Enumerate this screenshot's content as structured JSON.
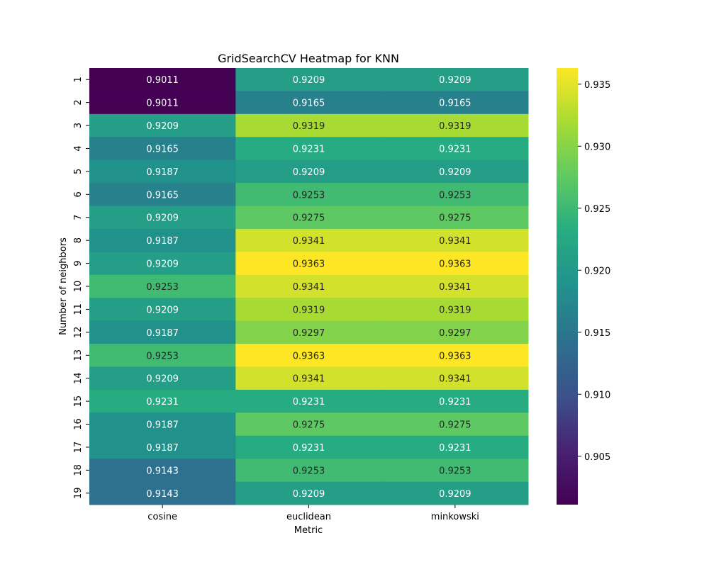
{
  "chart_data": {
    "type": "heatmap",
    "title": "GridSearchCV Heatmap for KNN",
    "xlabel": "Metric",
    "ylabel": "Number of neighbors",
    "x_categories": [
      "cosine",
      "euclidean",
      "minkowski"
    ],
    "y_categories": [
      "1",
      "2",
      "3",
      "4",
      "5",
      "6",
      "7",
      "8",
      "9",
      "10",
      "11",
      "12",
      "13",
      "14",
      "15",
      "16",
      "17",
      "18",
      "19"
    ],
    "values": [
      [
        0.9011,
        0.9209,
        0.9209
      ],
      [
        0.9011,
        0.9165,
        0.9165
      ],
      [
        0.9209,
        0.9319,
        0.9319
      ],
      [
        0.9165,
        0.9231,
        0.9231
      ],
      [
        0.9187,
        0.9209,
        0.9209
      ],
      [
        0.9165,
        0.9253,
        0.9253
      ],
      [
        0.9209,
        0.9275,
        0.9275
      ],
      [
        0.9187,
        0.9341,
        0.9341
      ],
      [
        0.9209,
        0.9363,
        0.9363
      ],
      [
        0.9253,
        0.9341,
        0.9341
      ],
      [
        0.9209,
        0.9319,
        0.9319
      ],
      [
        0.9187,
        0.9297,
        0.9297
      ],
      [
        0.9253,
        0.9363,
        0.9363
      ],
      [
        0.9209,
        0.9341,
        0.9341
      ],
      [
        0.9231,
        0.9231,
        0.9231
      ],
      [
        0.9187,
        0.9275,
        0.9275
      ],
      [
        0.9187,
        0.9231,
        0.9231
      ],
      [
        0.9143,
        0.9253,
        0.9253
      ],
      [
        0.9143,
        0.9209,
        0.9209
      ]
    ],
    "value_format": "4 decimals",
    "colormap": "viridis",
    "vmin": 0.9011,
    "vmax": 0.9363,
    "colorbar_ticks": [
      "0.905",
      "0.910",
      "0.915",
      "0.920",
      "0.925",
      "0.930",
      "0.935"
    ],
    "annotation_dark_color": "#262626",
    "annotation_light_color": "#ffffff"
  }
}
